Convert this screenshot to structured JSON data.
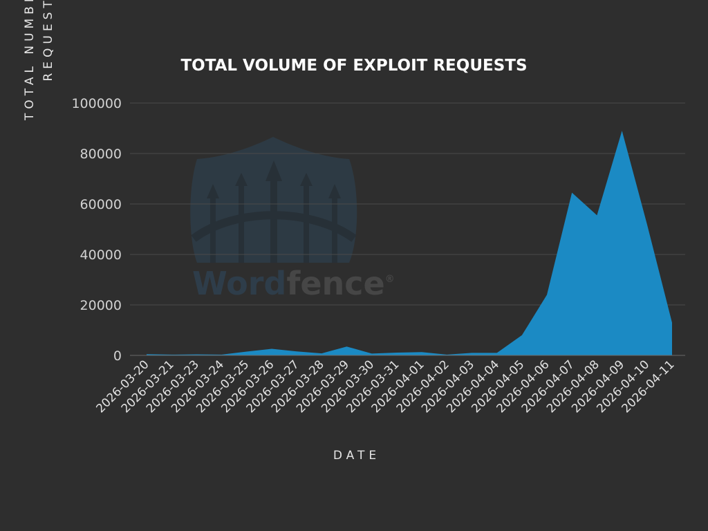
{
  "chart_data": {
    "type": "area",
    "title": "TOTAL VOLUME OF EXPLOIT REQUESTS",
    "xlabel": "DATE",
    "ylabel_lines": [
      "TOTAL NUMBER OF",
      "REQUESTS"
    ],
    "ylim": [
      0,
      100000
    ],
    "yticks": [
      "0",
      "20000",
      "40000",
      "60000",
      "80000",
      "100000"
    ],
    "grid": true,
    "categories": [
      "2026-03-20",
      "2026-03-21",
      "2026-03-23",
      "2026-03-24",
      "2026-03-25",
      "2026-03-26",
      "2026-03-27",
      "2026-03-28",
      "2026-03-29",
      "2026-03-30",
      "2026-03-31",
      "2026-04-01",
      "2026-04-02",
      "2026-04-03",
      "2026-04-04",
      "2026-04-05",
      "2026-04-06",
      "2026-04-07",
      "2026-04-08",
      "2026-04-09",
      "2026-04-10",
      "2026-04-11"
    ],
    "series": [
      {
        "values": [
          500,
          300,
          400,
          300,
          1500,
          2600,
          1600,
          800,
          3500,
          700,
          1100,
          1300,
          300,
          1000,
          1000,
          8000,
          24000,
          64500,
          55500,
          89000,
          52000,
          13000
        ]
      }
    ],
    "color": "#1b8ac4"
  },
  "watermark": {
    "brand": "Wordfence",
    "brand_part1": "Word",
    "brand_part2": "fence",
    "mark": "®"
  }
}
